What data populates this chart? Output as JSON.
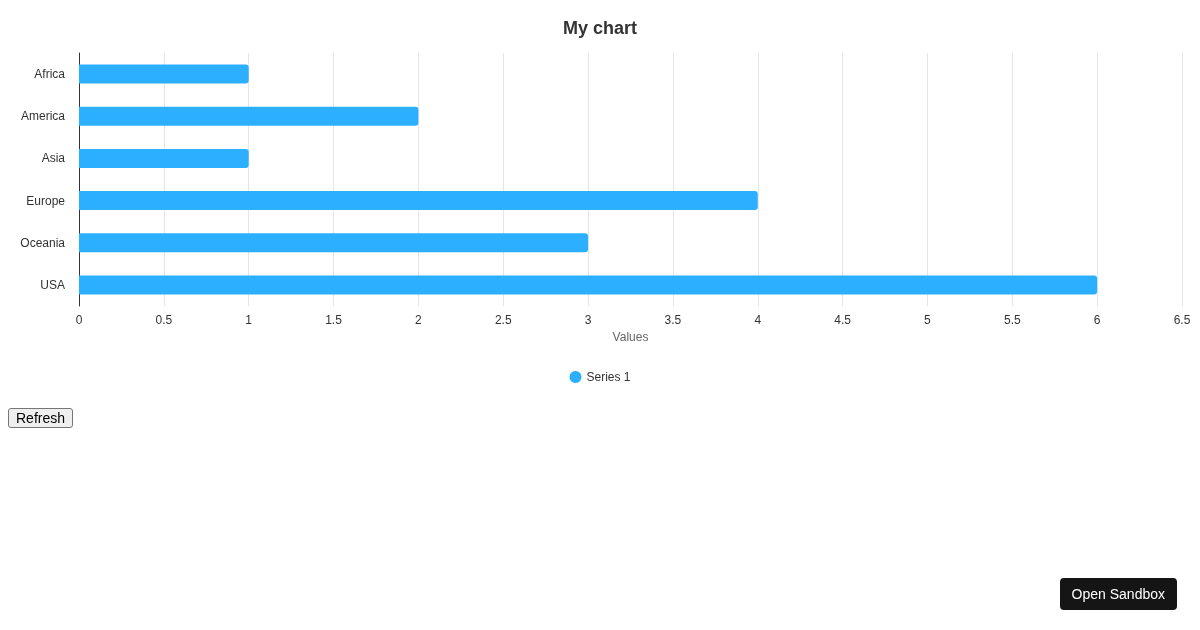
{
  "chart_data": {
    "type": "bar",
    "title": "My chart",
    "xlabel": "Values",
    "orientation": "horizontal",
    "categories": [
      "Africa",
      "America",
      "Asia",
      "Europe",
      "Oceania",
      "USA"
    ],
    "series": [
      {
        "name": "Series 1",
        "color": "#2caffe",
        "values": [
          1,
          2,
          1,
          4,
          3,
          6
        ]
      }
    ],
    "xlim": [
      0,
      6.5
    ],
    "xticks": [
      0,
      0.5,
      1,
      1.5,
      2,
      2.5,
      3,
      3.5,
      4,
      4.5,
      5,
      5.5,
      6,
      6.5
    ],
    "grid": "x",
    "legend": "bottom",
    "annotations": [
      "Refresh",
      "Open Sandbox"
    ]
  }
}
